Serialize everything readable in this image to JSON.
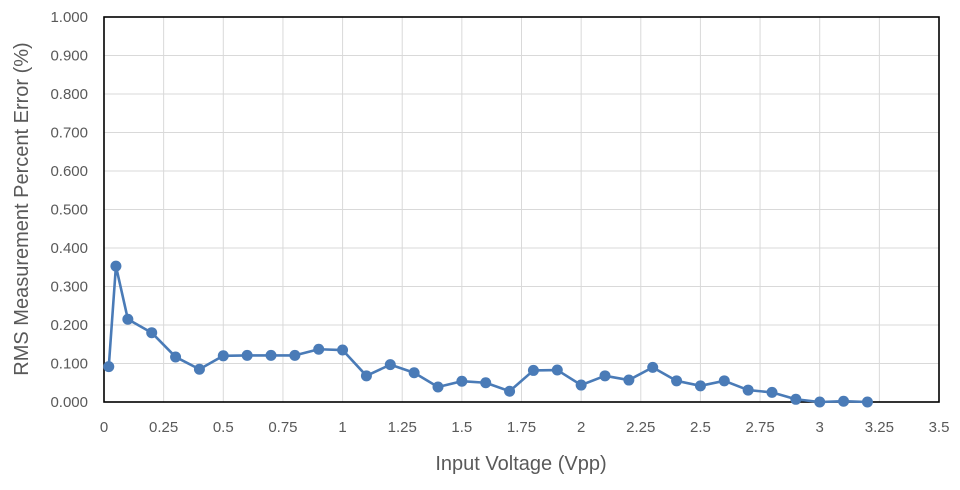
{
  "chart_data": {
    "type": "line",
    "title": "",
    "xlabel": "Input Voltage (Vpp)",
    "ylabel": "RMS Measurement Percent Error (%)",
    "xlim": [
      0,
      3.5
    ],
    "ylim": [
      0,
      1.0
    ],
    "x_ticks": [
      "0",
      "0.25",
      "0.5",
      "0.75",
      "1",
      "1.25",
      "1.5",
      "1.75",
      "2",
      "2.25",
      "2.5",
      "2.75",
      "3",
      "3.25",
      "3.5"
    ],
    "x_tick_values": [
      0,
      0.25,
      0.5,
      0.75,
      1,
      1.25,
      1.5,
      1.75,
      2,
      2.25,
      2.5,
      2.75,
      3,
      3.25,
      3.5
    ],
    "y_ticks": [
      "0.000",
      "0.100",
      "0.200",
      "0.300",
      "0.400",
      "0.500",
      "0.600",
      "0.700",
      "0.800",
      "0.900",
      "1.000"
    ],
    "y_tick_values": [
      0,
      0.1,
      0.2,
      0.3,
      0.4,
      0.5,
      0.6,
      0.7,
      0.8,
      0.9,
      1.0
    ],
    "grid": true,
    "legend": "none",
    "series": [
      {
        "color": "#4a7bb7",
        "x": [
          0.02,
          0.05,
          0.1,
          0.2,
          0.3,
          0.4,
          0.5,
          0.6,
          0.7,
          0.8,
          0.9,
          1.0,
          1.1,
          1.2,
          1.3,
          1.4,
          1.5,
          1.6,
          1.7,
          1.8,
          1.9,
          2.0,
          2.1,
          2.2,
          2.3,
          2.4,
          2.5,
          2.6,
          2.7,
          2.8,
          2.9,
          3.0,
          3.1,
          3.2
        ],
        "y": [
          0.092,
          0.353,
          0.215,
          0.18,
          0.117,
          0.085,
          0.12,
          0.121,
          0.121,
          0.121,
          0.137,
          0.135,
          0.068,
          0.097,
          0.076,
          0.039,
          0.054,
          0.05,
          0.028,
          0.082,
          0.083,
          0.044,
          0.068,
          0.057,
          0.09,
          0.055,
          0.042,
          0.055,
          0.031,
          0.025,
          0.007,
          0.0,
          0.002,
          0.0
        ]
      }
    ]
  }
}
